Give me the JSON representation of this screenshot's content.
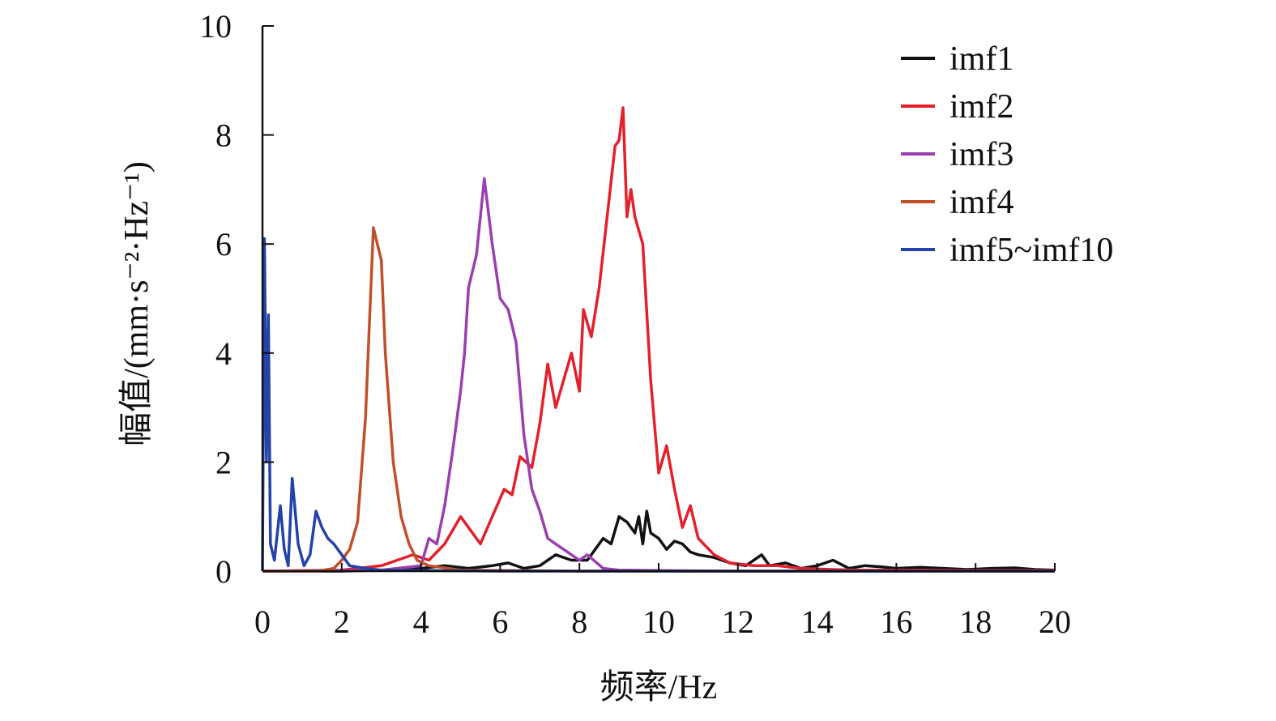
{
  "chart_data": {
    "type": "line",
    "xlabel": "频率/Hz",
    "ylabel": "幅值/(mm·s⁻²·Hz⁻¹)",
    "xlim": [
      0,
      20
    ],
    "ylim": [
      0,
      10
    ],
    "xticks": [
      "0",
      "2",
      "4",
      "6",
      "8",
      "10",
      "12",
      "14",
      "16",
      "18",
      "20"
    ],
    "yticks": [
      "0",
      "2",
      "4",
      "6",
      "8",
      "10"
    ],
    "grid": false,
    "legend_position": "top-right",
    "series": [
      {
        "name": "imf1",
        "color": "#111111",
        "points": [
          [
            0,
            0
          ],
          [
            1,
            0
          ],
          [
            2,
            0
          ],
          [
            3,
            0.02
          ],
          [
            4,
            0.05
          ],
          [
            4.6,
            0.1
          ],
          [
            5.2,
            0.05
          ],
          [
            5.8,
            0.1
          ],
          [
            6.2,
            0.15
          ],
          [
            6.6,
            0.05
          ],
          [
            7,
            0.1
          ],
          [
            7.4,
            0.3
          ],
          [
            7.8,
            0.2
          ],
          [
            8.2,
            0.2
          ],
          [
            8.6,
            0.6
          ],
          [
            8.8,
            0.5
          ],
          [
            9.0,
            1.0
          ],
          [
            9.2,
            0.9
          ],
          [
            9.4,
            0.7
          ],
          [
            9.5,
            1.0
          ],
          [
            9.6,
            0.5
          ],
          [
            9.7,
            1.1
          ],
          [
            9.8,
            0.7
          ],
          [
            10.0,
            0.6
          ],
          [
            10.2,
            0.4
          ],
          [
            10.4,
            0.55
          ],
          [
            10.6,
            0.5
          ],
          [
            10.8,
            0.35
          ],
          [
            11.0,
            0.3
          ],
          [
            11.4,
            0.25
          ],
          [
            11.8,
            0.15
          ],
          [
            12.2,
            0.1
          ],
          [
            12.6,
            0.3
          ],
          [
            12.8,
            0.1
          ],
          [
            13.2,
            0.15
          ],
          [
            13.6,
            0.05
          ],
          [
            14.0,
            0.1
          ],
          [
            14.4,
            0.2
          ],
          [
            14.8,
            0.05
          ],
          [
            15.2,
            0.1
          ],
          [
            15.6,
            0.08
          ],
          [
            16.0,
            0.05
          ],
          [
            16.6,
            0.07
          ],
          [
            17.2,
            0.05
          ],
          [
            17.8,
            0.03
          ],
          [
            18.4,
            0.05
          ],
          [
            19.0,
            0.06
          ],
          [
            19.5,
            0.03
          ],
          [
            20,
            0.02
          ]
        ]
      },
      {
        "name": "imf2",
        "color": "#e3202b",
        "points": [
          [
            0,
            0
          ],
          [
            2,
            0.02
          ],
          [
            3,
            0.1
          ],
          [
            3.4,
            0.2
          ],
          [
            3.8,
            0.3
          ],
          [
            4.2,
            0.2
          ],
          [
            4.6,
            0.5
          ],
          [
            5.0,
            1.0
          ],
          [
            5.2,
            0.8
          ],
          [
            5.5,
            0.5
          ],
          [
            5.8,
            1.0
          ],
          [
            6.1,
            1.5
          ],
          [
            6.3,
            1.4
          ],
          [
            6.5,
            2.1
          ],
          [
            6.8,
            1.9
          ],
          [
            7.0,
            2.7
          ],
          [
            7.2,
            3.8
          ],
          [
            7.4,
            3.0
          ],
          [
            7.6,
            3.5
          ],
          [
            7.8,
            4.0
          ],
          [
            8.0,
            3.3
          ],
          [
            8.1,
            4.8
          ],
          [
            8.3,
            4.3
          ],
          [
            8.5,
            5.2
          ],
          [
            8.7,
            6.5
          ],
          [
            8.9,
            7.8
          ],
          [
            9.0,
            7.9
          ],
          [
            9.1,
            8.5
          ],
          [
            9.2,
            6.5
          ],
          [
            9.3,
            7.0
          ],
          [
            9.4,
            6.5
          ],
          [
            9.6,
            6.0
          ],
          [
            9.8,
            3.5
          ],
          [
            10.0,
            1.8
          ],
          [
            10.2,
            2.3
          ],
          [
            10.4,
            1.5
          ],
          [
            10.6,
            0.8
          ],
          [
            10.8,
            1.2
          ],
          [
            11.0,
            0.6
          ],
          [
            11.4,
            0.3
          ],
          [
            11.8,
            0.15
          ],
          [
            12.4,
            0.1
          ],
          [
            13.0,
            0.1
          ],
          [
            13.6,
            0.05
          ],
          [
            14.4,
            0.03
          ],
          [
            15,
            0.02
          ],
          [
            16,
            0.02
          ],
          [
            18,
            0.01
          ],
          [
            20,
            0.01
          ]
        ]
      },
      {
        "name": "imf3",
        "color": "#9b3fb0",
        "points": [
          [
            0,
            0
          ],
          [
            3,
            0.02
          ],
          [
            4.0,
            0.1
          ],
          [
            4.2,
            0.6
          ],
          [
            4.4,
            0.5
          ],
          [
            4.6,
            1.2
          ],
          [
            4.8,
            2.2
          ],
          [
            5.0,
            3.3
          ],
          [
            5.1,
            4.0
          ],
          [
            5.2,
            5.2
          ],
          [
            5.4,
            5.8
          ],
          [
            5.6,
            7.2
          ],
          [
            5.8,
            6.0
          ],
          [
            6.0,
            5.0
          ],
          [
            6.2,
            4.8
          ],
          [
            6.4,
            4.2
          ],
          [
            6.6,
            2.5
          ],
          [
            6.8,
            1.5
          ],
          [
            7.0,
            1.1
          ],
          [
            7.2,
            0.6
          ],
          [
            7.4,
            0.5
          ],
          [
            7.6,
            0.4
          ],
          [
            7.8,
            0.3
          ],
          [
            8.0,
            0.2
          ],
          [
            8.2,
            0.3
          ],
          [
            8.6,
            0.05
          ],
          [
            9.0,
            0.02
          ],
          [
            10,
            0.01
          ],
          [
            12,
            0
          ],
          [
            16,
            0
          ],
          [
            20,
            0
          ]
        ]
      },
      {
        "name": "imf4",
        "color": "#c0502a",
        "points": [
          [
            0,
            0
          ],
          [
            1.4,
            0
          ],
          [
            1.8,
            0.05
          ],
          [
            2.0,
            0.2
          ],
          [
            2.2,
            0.4
          ],
          [
            2.4,
            0.9
          ],
          [
            2.6,
            2.8
          ],
          [
            2.8,
            6.3
          ],
          [
            3.0,
            5.7
          ],
          [
            3.1,
            4.0
          ],
          [
            3.3,
            2.0
          ],
          [
            3.5,
            1.0
          ],
          [
            3.7,
            0.5
          ],
          [
            3.9,
            0.2
          ],
          [
            4.2,
            0.1
          ],
          [
            5,
            0.02
          ],
          [
            6,
            0.01
          ],
          [
            8,
            0
          ],
          [
            12,
            0
          ],
          [
            20,
            0
          ]
        ]
      },
      {
        "name": "imf5~imf10",
        "color": "#2442a8",
        "points": [
          [
            0,
            0
          ],
          [
            0.05,
            6.1
          ],
          [
            0.1,
            2.0
          ],
          [
            0.15,
            4.7
          ],
          [
            0.2,
            0.5
          ],
          [
            0.3,
            0.2
          ],
          [
            0.45,
            1.2
          ],
          [
            0.55,
            0.4
          ],
          [
            0.65,
            0.1
          ],
          [
            0.75,
            1.7
          ],
          [
            0.9,
            0.5
          ],
          [
            1.05,
            0.1
          ],
          [
            1.2,
            0.3
          ],
          [
            1.35,
            1.1
          ],
          [
            1.5,
            0.8
          ],
          [
            1.65,
            0.6
          ],
          [
            1.8,
            0.5
          ],
          [
            2.0,
            0.3
          ],
          [
            2.2,
            0.1
          ],
          [
            2.6,
            0.05
          ],
          [
            3,
            0.02
          ],
          [
            4,
            0.01
          ],
          [
            6,
            0
          ],
          [
            10,
            0
          ],
          [
            20,
            0
          ]
        ]
      }
    ]
  }
}
